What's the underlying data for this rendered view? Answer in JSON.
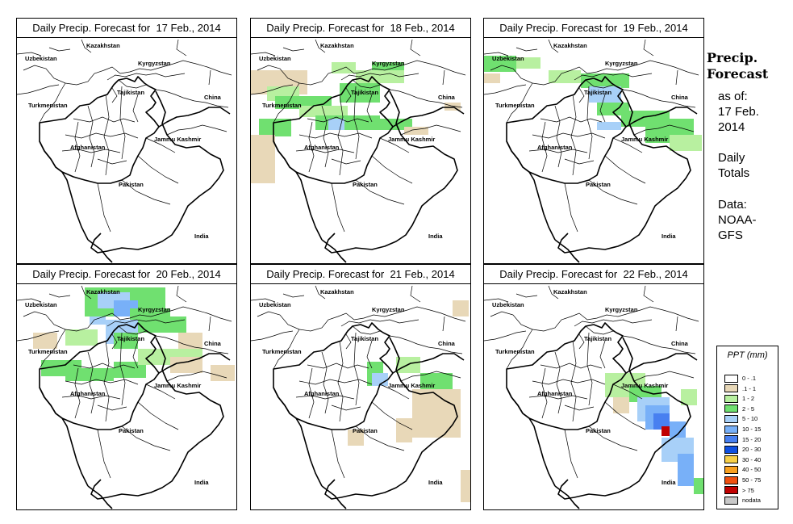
{
  "panels": [
    {
      "title": "Daily Precip. Forecast for  17 Feb., 2014"
    },
    {
      "title": "Daily Precip. Forecast for  18 Feb., 2014"
    },
    {
      "title": "Daily Precip. Forecast for  19 Feb., 2014"
    },
    {
      "title": "Daily Precip. Forecast for  20 Feb., 2014"
    },
    {
      "title": "Daily Precip. Forecast for  21 Feb., 2014"
    },
    {
      "title": "Daily Precip. Forecast for  22 Feb., 2014"
    }
  ],
  "map_labels": {
    "uzbekistan": "Uzbekistan",
    "kazakhstan": "Kazakhstan",
    "kyrgyzstan": "Kyrgyzstan",
    "tajikistan": "Tajikistan",
    "turkmenistan": "Turkmenistan",
    "china": "China",
    "afghanistan": "Afghanistan",
    "jammu_kashmir": "Jammu Kashmir",
    "pakistan": "Pakistan",
    "india": "India"
  },
  "side_info": {
    "title_line1": "Precip.",
    "title_line2": "Forecast",
    "asof_line1": "as of:",
    "asof_line2": "17 Feb.",
    "asof_line3": "2014",
    "totals_line1": "Daily",
    "totals_line2": "Totals",
    "data_line1": "Data:",
    "data_line2": "NOAA-",
    "data_line3": "GFS"
  },
  "legend": {
    "title": "PPT (mm)",
    "items": [
      {
        "label": "0 - .1",
        "color": "#ffffff"
      },
      {
        "label": ".1 - 1",
        "color": "#e8d8b8"
      },
      {
        "label": "1 - 2",
        "color": "#b8f0a0"
      },
      {
        "label": "2 - 5",
        "color": "#70e070"
      },
      {
        "label": "5 - 10",
        "color": "#a8d0f8"
      },
      {
        "label": "10 - 15",
        "color": "#78b0f8"
      },
      {
        "label": "15 - 20",
        "color": "#4880f0"
      },
      {
        "label": "20 - 30",
        "color": "#1050e0"
      },
      {
        "label": "30 - 40",
        "color": "#f8d048"
      },
      {
        "label": "40 - 50",
        "color": "#f8a020"
      },
      {
        "label": "50 - 75",
        "color": "#f05010"
      },
      {
        "label": "> 75",
        "color": "#c00000"
      },
      {
        "label": "nodata",
        "color": "#c8c8c8"
      }
    ]
  }
}
